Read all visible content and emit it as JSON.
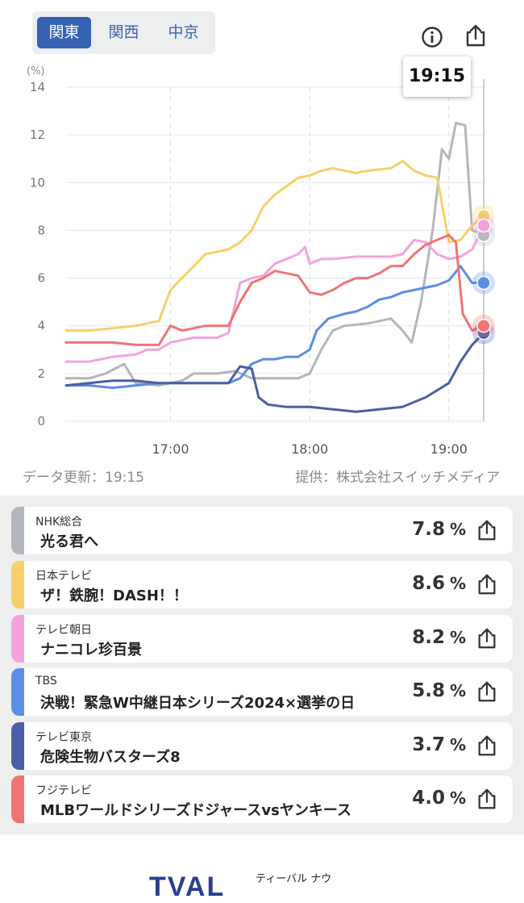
{
  "region_tabs": [
    {
      "label": "関東",
      "active": true
    },
    {
      "label": "関西",
      "active": false
    },
    {
      "label": "中京",
      "active": false
    }
  ],
  "header_icons": [
    "info-icon",
    "share-icon"
  ],
  "chart_data": {
    "type": "line",
    "unit_label": "(%)",
    "ylim": [
      0,
      14
    ],
    "yticks": [
      0,
      2,
      4,
      6,
      8,
      10,
      12,
      14
    ],
    "xlim_minutes": [
      975,
      1155
    ],
    "xticks": [
      "17:00",
      "18:00",
      "19:00"
    ],
    "current_time": "19:15",
    "grid": true,
    "series": [
      {
        "name": "NHK総合",
        "color": "#b3b6bd",
        "points": [
          [
            975,
            1.8
          ],
          [
            985,
            1.8
          ],
          [
            992,
            2.0
          ],
          [
            1000,
            2.4
          ],
          [
            1005,
            1.6
          ],
          [
            1015,
            1.5
          ],
          [
            1025,
            1.7
          ],
          [
            1030,
            2.0
          ],
          [
            1040,
            2.0
          ],
          [
            1048,
            2.1
          ],
          [
            1055,
            1.8
          ],
          [
            1065,
            1.8
          ],
          [
            1075,
            1.8
          ],
          [
            1080,
            2.0
          ],
          [
            1085,
            3.0
          ],
          [
            1090,
            3.8
          ],
          [
            1095,
            4.0
          ],
          [
            1105,
            4.1
          ],
          [
            1115,
            4.3
          ],
          [
            1120,
            3.8
          ],
          [
            1124,
            3.3
          ],
          [
            1128,
            5.0
          ],
          [
            1133,
            8.0
          ],
          [
            1137,
            11.4
          ],
          [
            1140,
            11.0
          ],
          [
            1143,
            12.5
          ],
          [
            1147,
            12.4
          ],
          [
            1150,
            8.0
          ],
          [
            1155,
            7.8
          ]
        ]
      },
      {
        "name": "日本テレビ",
        "color": "#f7cf6b",
        "points": [
          [
            975,
            3.8
          ],
          [
            985,
            3.8
          ],
          [
            995,
            3.9
          ],
          [
            1005,
            4.0
          ],
          [
            1015,
            4.2
          ],
          [
            1020,
            5.5
          ],
          [
            1025,
            6.0
          ],
          [
            1035,
            7.0
          ],
          [
            1045,
            7.2
          ],
          [
            1050,
            7.5
          ],
          [
            1055,
            8.0
          ],
          [
            1060,
            9.0
          ],
          [
            1065,
            9.5
          ],
          [
            1075,
            10.2
          ],
          [
            1080,
            10.3
          ],
          [
            1085,
            10.5
          ],
          [
            1090,
            10.6
          ],
          [
            1100,
            10.4
          ],
          [
            1105,
            10.5
          ],
          [
            1115,
            10.6
          ],
          [
            1120,
            10.9
          ],
          [
            1125,
            10.5
          ],
          [
            1130,
            10.3
          ],
          [
            1135,
            10.2
          ],
          [
            1140,
            7.5
          ],
          [
            1145,
            7.6
          ],
          [
            1150,
            8.2
          ],
          [
            1155,
            8.6
          ]
        ]
      },
      {
        "name": "テレビ朝日",
        "color": "#f2a3de",
        "points": [
          [
            975,
            2.5
          ],
          [
            985,
            2.5
          ],
          [
            995,
            2.7
          ],
          [
            1005,
            2.8
          ],
          [
            1010,
            3.0
          ],
          [
            1015,
            3.0
          ],
          [
            1020,
            3.3
          ],
          [
            1030,
            3.5
          ],
          [
            1040,
            3.5
          ],
          [
            1045,
            3.7
          ],
          [
            1050,
            5.8
          ],
          [
            1055,
            6.0
          ],
          [
            1060,
            6.1
          ],
          [
            1065,
            6.6
          ],
          [
            1070,
            6.8
          ],
          [
            1075,
            7.0
          ],
          [
            1078,
            7.3
          ],
          [
            1080,
            6.6
          ],
          [
            1085,
            6.8
          ],
          [
            1090,
            6.8
          ],
          [
            1100,
            6.9
          ],
          [
            1110,
            6.9
          ],
          [
            1115,
            6.9
          ],
          [
            1120,
            7.0
          ],
          [
            1125,
            7.6
          ],
          [
            1130,
            7.5
          ],
          [
            1135,
            7.0
          ],
          [
            1140,
            6.8
          ],
          [
            1145,
            6.9
          ],
          [
            1150,
            7.2
          ],
          [
            1155,
            8.2
          ]
        ]
      },
      {
        "name": "TBS",
        "color": "#5b8de3",
        "points": [
          [
            975,
            1.5
          ],
          [
            985,
            1.5
          ],
          [
            995,
            1.4
          ],
          [
            1005,
            1.5
          ],
          [
            1015,
            1.6
          ],
          [
            1025,
            1.6
          ],
          [
            1035,
            1.6
          ],
          [
            1045,
            1.6
          ],
          [
            1050,
            1.8
          ],
          [
            1055,
            2.4
          ],
          [
            1060,
            2.6
          ],
          [
            1065,
            2.6
          ],
          [
            1070,
            2.7
          ],
          [
            1075,
            2.7
          ],
          [
            1080,
            3.0
          ],
          [
            1083,
            3.8
          ],
          [
            1088,
            4.3
          ],
          [
            1095,
            4.5
          ],
          [
            1100,
            4.6
          ],
          [
            1105,
            4.8
          ],
          [
            1110,
            5.1
          ],
          [
            1115,
            5.2
          ],
          [
            1120,
            5.4
          ],
          [
            1125,
            5.5
          ],
          [
            1130,
            5.6
          ],
          [
            1135,
            5.7
          ],
          [
            1140,
            5.9
          ],
          [
            1145,
            6.5
          ],
          [
            1150,
            5.8
          ],
          [
            1155,
            5.8
          ]
        ]
      },
      {
        "name": "テレビ東京",
        "color": "#4b5fa6",
        "points": [
          [
            975,
            1.5
          ],
          [
            985,
            1.6
          ],
          [
            995,
            1.7
          ],
          [
            1005,
            1.7
          ],
          [
            1015,
            1.6
          ],
          [
            1025,
            1.6
          ],
          [
            1035,
            1.6
          ],
          [
            1045,
            1.6
          ],
          [
            1050,
            2.3
          ],
          [
            1055,
            2.2
          ],
          [
            1058,
            1.0
          ],
          [
            1062,
            0.7
          ],
          [
            1070,
            0.6
          ],
          [
            1080,
            0.6
          ],
          [
            1090,
            0.5
          ],
          [
            1100,
            0.4
          ],
          [
            1110,
            0.5
          ],
          [
            1120,
            0.6
          ],
          [
            1125,
            0.8
          ],
          [
            1130,
            1.0
          ],
          [
            1135,
            1.3
          ],
          [
            1140,
            1.6
          ],
          [
            1145,
            2.5
          ],
          [
            1150,
            3.2
          ],
          [
            1155,
            3.7
          ]
        ]
      },
      {
        "name": "フジテレビ",
        "color": "#ee7574",
        "points": [
          [
            975,
            3.3
          ],
          [
            985,
            3.3
          ],
          [
            995,
            3.3
          ],
          [
            1005,
            3.2
          ],
          [
            1015,
            3.2
          ],
          [
            1020,
            4.0
          ],
          [
            1025,
            3.8
          ],
          [
            1030,
            3.9
          ],
          [
            1035,
            4.0
          ],
          [
            1040,
            4.0
          ],
          [
            1045,
            4.0
          ],
          [
            1050,
            5.0
          ],
          [
            1055,
            5.8
          ],
          [
            1060,
            6.0
          ],
          [
            1065,
            6.3
          ],
          [
            1070,
            6.2
          ],
          [
            1075,
            6.1
          ],
          [
            1080,
            5.4
          ],
          [
            1085,
            5.3
          ],
          [
            1090,
            5.5
          ],
          [
            1095,
            5.8
          ],
          [
            1100,
            6.0
          ],
          [
            1105,
            6.0
          ],
          [
            1110,
            6.2
          ],
          [
            1115,
            6.5
          ],
          [
            1120,
            6.5
          ],
          [
            1125,
            7.0
          ],
          [
            1130,
            7.4
          ],
          [
            1135,
            7.6
          ],
          [
            1140,
            7.8
          ],
          [
            1143,
            7.5
          ],
          [
            1146,
            4.5
          ],
          [
            1150,
            3.8
          ],
          [
            1155,
            4.0
          ]
        ]
      }
    ]
  },
  "footer": {
    "updated": "データ更新：19:15",
    "provider": "提供：株式会社スイッチメディア"
  },
  "ratings": [
    {
      "channel": "NHK総合",
      "program": "光る君へ",
      "value": "7.8",
      "unit": "%",
      "color": "#b3b6bd"
    },
    {
      "channel": "日本テレビ",
      "program": "ザ！鉄腕！DASH！！",
      "value": "8.6",
      "unit": "%",
      "color": "#f7cf6b"
    },
    {
      "channel": "テレビ朝日",
      "program": "ナニコレ珍百景",
      "value": "8.2",
      "unit": "%",
      "color": "#f2a3de"
    },
    {
      "channel": "TBS",
      "program": "決戦！緊急W中継日本シリーズ2024×選挙の日",
      "value": "5.8",
      "unit": "%",
      "color": "#5b8de3"
    },
    {
      "channel": "テレビ東京",
      "program": "危険生物バスターズ8",
      "value": "3.7",
      "unit": "%",
      "color": "#4b5fa6"
    },
    {
      "channel": "フジテレビ",
      "program": "MLBワールドシリーズドジャースvsヤンキース",
      "value": "4.0",
      "unit": "%",
      "color": "#ee7574"
    }
  ],
  "brand": {
    "logo_text": "TVAL",
    "tagline": "ティーバル ナウ"
  }
}
